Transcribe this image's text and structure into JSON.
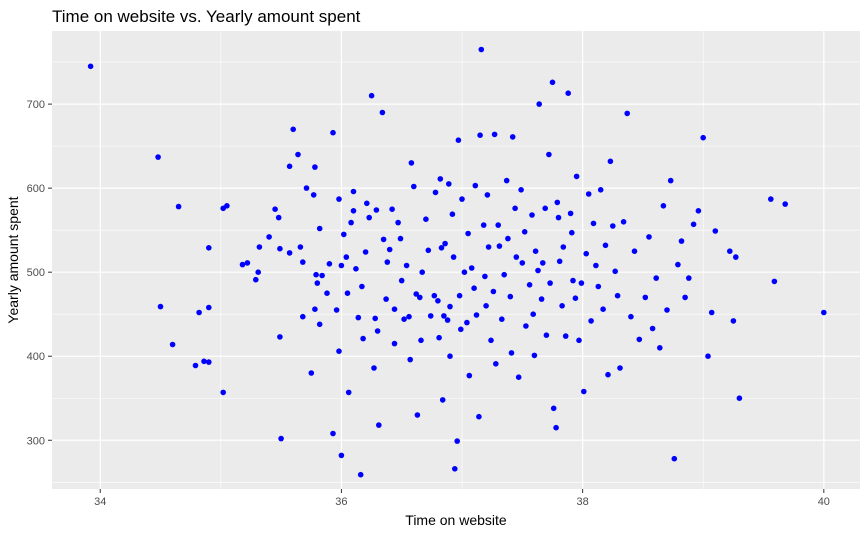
{
  "chart_data": {
    "type": "scatter",
    "title": "Time on website vs. Yearly amount spent",
    "xlabel": "Time on website",
    "ylabel": "Yearly amount spent",
    "xlim": [
      33.6,
      40.3
    ],
    "ylim": [
      242,
      787
    ],
    "xticks": [
      34,
      36,
      38,
      40
    ],
    "yticks": [
      300,
      400,
      500,
      600,
      700
    ],
    "xtick_labels": [
      "34",
      "36",
      "38",
      "40"
    ],
    "ytick_labels": [
      "300",
      "400",
      "500",
      "600",
      "700"
    ],
    "background": "#ebebeb",
    "grid_color": "#ffffff",
    "point_color": "#0000ff",
    "grid": true,
    "points": [
      [
        33.92,
        745
      ],
      [
        34.48,
        637
      ],
      [
        34.5,
        459
      ],
      [
        34.6,
        414
      ],
      [
        34.65,
        578
      ],
      [
        34.79,
        389
      ],
      [
        34.82,
        452
      ],
      [
        34.86,
        394
      ],
      [
        34.9,
        393
      ],
      [
        34.9,
        458
      ],
      [
        34.9,
        529
      ],
      [
        35.02,
        576
      ],
      [
        35.02,
        357
      ],
      [
        35.05,
        579
      ],
      [
        35.18,
        509
      ],
      [
        35.22,
        511
      ],
      [
        35.31,
        500
      ],
      [
        35.29,
        491
      ],
      [
        35.32,
        530
      ],
      [
        35.4,
        542
      ],
      [
        35.45,
        575
      ],
      [
        35.48,
        565
      ],
      [
        35.49,
        423
      ],
      [
        35.49,
        528
      ],
      [
        35.5,
        302
      ],
      [
        35.57,
        523
      ],
      [
        35.57,
        626
      ],
      [
        35.6,
        670
      ],
      [
        35.64,
        640
      ],
      [
        35.66,
        530
      ],
      [
        35.68,
        512
      ],
      [
        35.68,
        447
      ],
      [
        35.71,
        600
      ],
      [
        35.75,
        380
      ],
      [
        35.77,
        592
      ],
      [
        35.78,
        625
      ],
      [
        35.78,
        456
      ],
      [
        35.79,
        497
      ],
      [
        35.8,
        487
      ],
      [
        35.82,
        438
      ],
      [
        35.82,
        552
      ],
      [
        35.84,
        496
      ],
      [
        35.88,
        475
      ],
      [
        35.9,
        510
      ],
      [
        35.93,
        308
      ],
      [
        35.93,
        666
      ],
      [
        35.96,
        455
      ],
      [
        35.98,
        406
      ],
      [
        35.98,
        587
      ],
      [
        36.0,
        508
      ],
      [
        36.0,
        282
      ],
      [
        36.02,
        545
      ],
      [
        36.04,
        518
      ],
      [
        36.05,
        475
      ],
      [
        36.06,
        357
      ],
      [
        36.08,
        559
      ],
      [
        36.1,
        596
      ],
      [
        36.1,
        573
      ],
      [
        36.12,
        504
      ],
      [
        36.14,
        446
      ],
      [
        36.16,
        259
      ],
      [
        36.17,
        483
      ],
      [
        36.18,
        421
      ],
      [
        36.2,
        524
      ],
      [
        36.21,
        582
      ],
      [
        36.23,
        565
      ],
      [
        36.25,
        710
      ],
      [
        36.27,
        386
      ],
      [
        36.28,
        445
      ],
      [
        36.29,
        574
      ],
      [
        36.3,
        430
      ],
      [
        36.31,
        318
      ],
      [
        36.34,
        690
      ],
      [
        36.35,
        539
      ],
      [
        36.37,
        468
      ],
      [
        36.38,
        512
      ],
      [
        36.4,
        527
      ],
      [
        36.42,
        575
      ],
      [
        36.44,
        456
      ],
      [
        36.44,
        415
      ],
      [
        36.47,
        559
      ],
      [
        36.49,
        540
      ],
      [
        36.5,
        490
      ],
      [
        36.52,
        444
      ],
      [
        36.54,
        508
      ],
      [
        36.56,
        447
      ],
      [
        36.57,
        396
      ],
      [
        36.58,
        630
      ],
      [
        36.6,
        602
      ],
      [
        36.62,
        474
      ],
      [
        36.63,
        330
      ],
      [
        36.65,
        470
      ],
      [
        36.66,
        419
      ],
      [
        36.67,
        500
      ],
      [
        36.7,
        563
      ],
      [
        36.72,
        526
      ],
      [
        36.74,
        448
      ],
      [
        36.77,
        472
      ],
      [
        36.78,
        595
      ],
      [
        36.8,
        466
      ],
      [
        36.81,
        422
      ],
      [
        36.82,
        611
      ],
      [
        36.83,
        529
      ],
      [
        36.84,
        348
      ],
      [
        36.85,
        448
      ],
      [
        36.86,
        534
      ],
      [
        36.88,
        443
      ],
      [
        36.89,
        605
      ],
      [
        36.9,
        459
      ],
      [
        36.9,
        400
      ],
      [
        36.92,
        569
      ],
      [
        36.93,
        518
      ],
      [
        36.94,
        266
      ],
      [
        36.96,
        299
      ],
      [
        36.97,
        657
      ],
      [
        36.98,
        472
      ],
      [
        36.99,
        432
      ],
      [
        37.0,
        587
      ],
      [
        37.02,
        500
      ],
      [
        37.04,
        440
      ],
      [
        37.05,
        546
      ],
      [
        37.06,
        377
      ],
      [
        37.08,
        505
      ],
      [
        37.1,
        481
      ],
      [
        37.11,
        603
      ],
      [
        37.12,
        449
      ],
      [
        37.14,
        328
      ],
      [
        37.15,
        663
      ],
      [
        37.16,
        765
      ],
      [
        37.18,
        556
      ],
      [
        37.19,
        495
      ],
      [
        37.2,
        460
      ],
      [
        37.21,
        592
      ],
      [
        37.22,
        530
      ],
      [
        37.24,
        419
      ],
      [
        37.26,
        477
      ],
      [
        37.27,
        664
      ],
      [
        37.28,
        391
      ],
      [
        37.3,
        556
      ],
      [
        37.31,
        531
      ],
      [
        37.33,
        444
      ],
      [
        37.35,
        497
      ],
      [
        37.37,
        609
      ],
      [
        37.38,
        540
      ],
      [
        37.4,
        471
      ],
      [
        37.41,
        404
      ],
      [
        37.42,
        661
      ],
      [
        37.44,
        576
      ],
      [
        37.45,
        518
      ],
      [
        37.47,
        375
      ],
      [
        37.49,
        598
      ],
      [
        37.5,
        511
      ],
      [
        37.52,
        548
      ],
      [
        37.53,
        436
      ],
      [
        37.56,
        485
      ],
      [
        37.58,
        568
      ],
      [
        37.59,
        450
      ],
      [
        37.6,
        401
      ],
      [
        37.61,
        525
      ],
      [
        37.63,
        502
      ],
      [
        37.64,
        700
      ],
      [
        37.66,
        468
      ],
      [
        37.67,
        511
      ],
      [
        37.69,
        576
      ],
      [
        37.7,
        425
      ],
      [
        37.72,
        640
      ],
      [
        37.73,
        487
      ],
      [
        37.75,
        726
      ],
      [
        37.76,
        338
      ],
      [
        37.78,
        315
      ],
      [
        37.79,
        583
      ],
      [
        37.8,
        565
      ],
      [
        37.81,
        513
      ],
      [
        37.83,
        460
      ],
      [
        37.84,
        530
      ],
      [
        37.86,
        424
      ],
      [
        37.88,
        713
      ],
      [
        37.9,
        570
      ],
      [
        37.91,
        547
      ],
      [
        37.92,
        490
      ],
      [
        37.94,
        469
      ],
      [
        37.95,
        614
      ],
      [
        37.97,
        419
      ],
      [
        37.99,
        487
      ],
      [
        38.01,
        358
      ],
      [
        38.03,
        522
      ],
      [
        38.05,
        593
      ],
      [
        38.07,
        442
      ],
      [
        38.09,
        558
      ],
      [
        38.11,
        508
      ],
      [
        38.13,
        483
      ],
      [
        38.15,
        598
      ],
      [
        38.17,
        456
      ],
      [
        38.19,
        532
      ],
      [
        38.21,
        378
      ],
      [
        38.23,
        632
      ],
      [
        38.25,
        555
      ],
      [
        38.27,
        501
      ],
      [
        38.29,
        472
      ],
      [
        38.31,
        386
      ],
      [
        38.34,
        560
      ],
      [
        38.37,
        689
      ],
      [
        38.4,
        447
      ],
      [
        38.43,
        525
      ],
      [
        38.47,
        420
      ],
      [
        38.52,
        470
      ],
      [
        38.55,
        542
      ],
      [
        38.58,
        433
      ],
      [
        38.61,
        493
      ],
      [
        38.64,
        410
      ],
      [
        38.67,
        579
      ],
      [
        38.7,
        455
      ],
      [
        38.73,
        609
      ],
      [
        38.76,
        278
      ],
      [
        38.79,
        509
      ],
      [
        38.82,
        537
      ],
      [
        38.85,
        470
      ],
      [
        38.88,
        493
      ],
      [
        38.92,
        557
      ],
      [
        38.96,
        573
      ],
      [
        39.0,
        660
      ],
      [
        39.04,
        400
      ],
      [
        39.07,
        452
      ],
      [
        39.1,
        549
      ],
      [
        39.22,
        525
      ],
      [
        39.25,
        442
      ],
      [
        39.27,
        518
      ],
      [
        39.3,
        350
      ],
      [
        39.56,
        587
      ],
      [
        39.59,
        489
      ],
      [
        39.68,
        581
      ],
      [
        40.0,
        452
      ]
    ]
  }
}
